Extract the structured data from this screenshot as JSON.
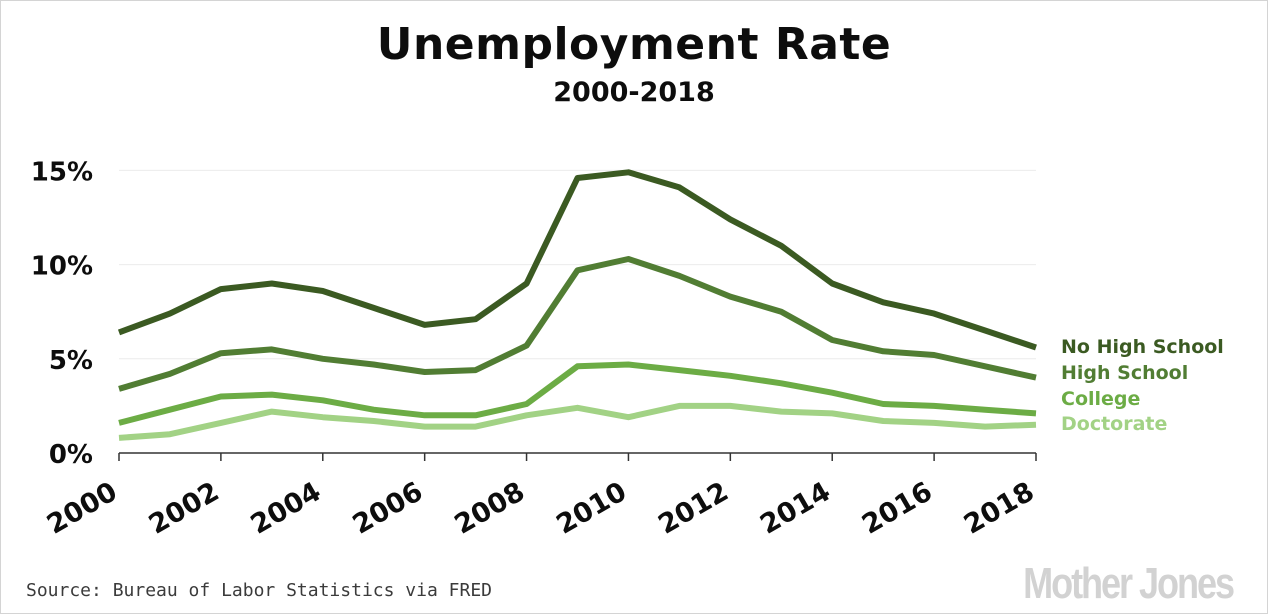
{
  "chart_data": {
    "type": "line",
    "title": "Unemployment Rate",
    "subtitle": "2000-2018",
    "x": [
      2000,
      2001,
      2002,
      2003,
      2004,
      2005,
      2006,
      2007,
      2008,
      2009,
      2010,
      2011,
      2012,
      2013,
      2014,
      2015,
      2016,
      2017,
      2018
    ],
    "xticks": [
      2000,
      2002,
      2004,
      2006,
      2008,
      2010,
      2012,
      2014,
      2016,
      2018
    ],
    "xtick_labels": [
      "2000",
      "2002",
      "2004",
      "2006",
      "2008",
      "2010",
      "2012",
      "2014",
      "2016",
      "2018"
    ],
    "yticks": [
      0,
      5,
      10,
      15
    ],
    "ytick_labels": [
      "0%",
      "5%",
      "10%",
      "15%"
    ],
    "ylim": [
      0,
      15.5
    ],
    "xlabel": "",
    "ylabel": "",
    "grid": true,
    "legend_placement": "right, inline at line ends",
    "series": [
      {
        "name": "No High School",
        "color": "#3b5a22",
        "values": [
          6.4,
          7.4,
          8.7,
          9.0,
          8.6,
          7.7,
          6.8,
          7.1,
          9.0,
          14.6,
          14.9,
          14.1,
          12.4,
          11.0,
          9.0,
          8.0,
          7.4,
          6.5,
          5.6
        ]
      },
      {
        "name": "High School",
        "color": "#517d33",
        "values": [
          3.4,
          4.2,
          5.3,
          5.5,
          5.0,
          4.7,
          4.3,
          4.4,
          5.7,
          9.7,
          10.3,
          9.4,
          8.3,
          7.5,
          6.0,
          5.4,
          5.2,
          4.6,
          4.0
        ]
      },
      {
        "name": "College",
        "color": "#6cac45",
        "values": [
          1.6,
          2.3,
          3.0,
          3.1,
          2.8,
          2.3,
          2.0,
          2.0,
          2.6,
          4.6,
          4.7,
          4.4,
          4.1,
          3.7,
          3.2,
          2.6,
          2.5,
          2.3,
          2.1
        ]
      },
      {
        "name": "Doctorate",
        "color": "#a2d285",
        "values": [
          0.8,
          1.0,
          1.6,
          2.2,
          1.9,
          1.7,
          1.4,
          1.4,
          2.0,
          2.4,
          1.9,
          2.5,
          2.5,
          2.2,
          2.1,
          1.7,
          1.6,
          1.4,
          1.5
        ]
      }
    ]
  },
  "footer": {
    "source": "Source: Bureau of Labor Statistics via FRED",
    "brand": "Mother Jones"
  },
  "colors": {
    "grid": "#ececec",
    "axis": "#333333",
    "text": "#0d0d0d"
  }
}
